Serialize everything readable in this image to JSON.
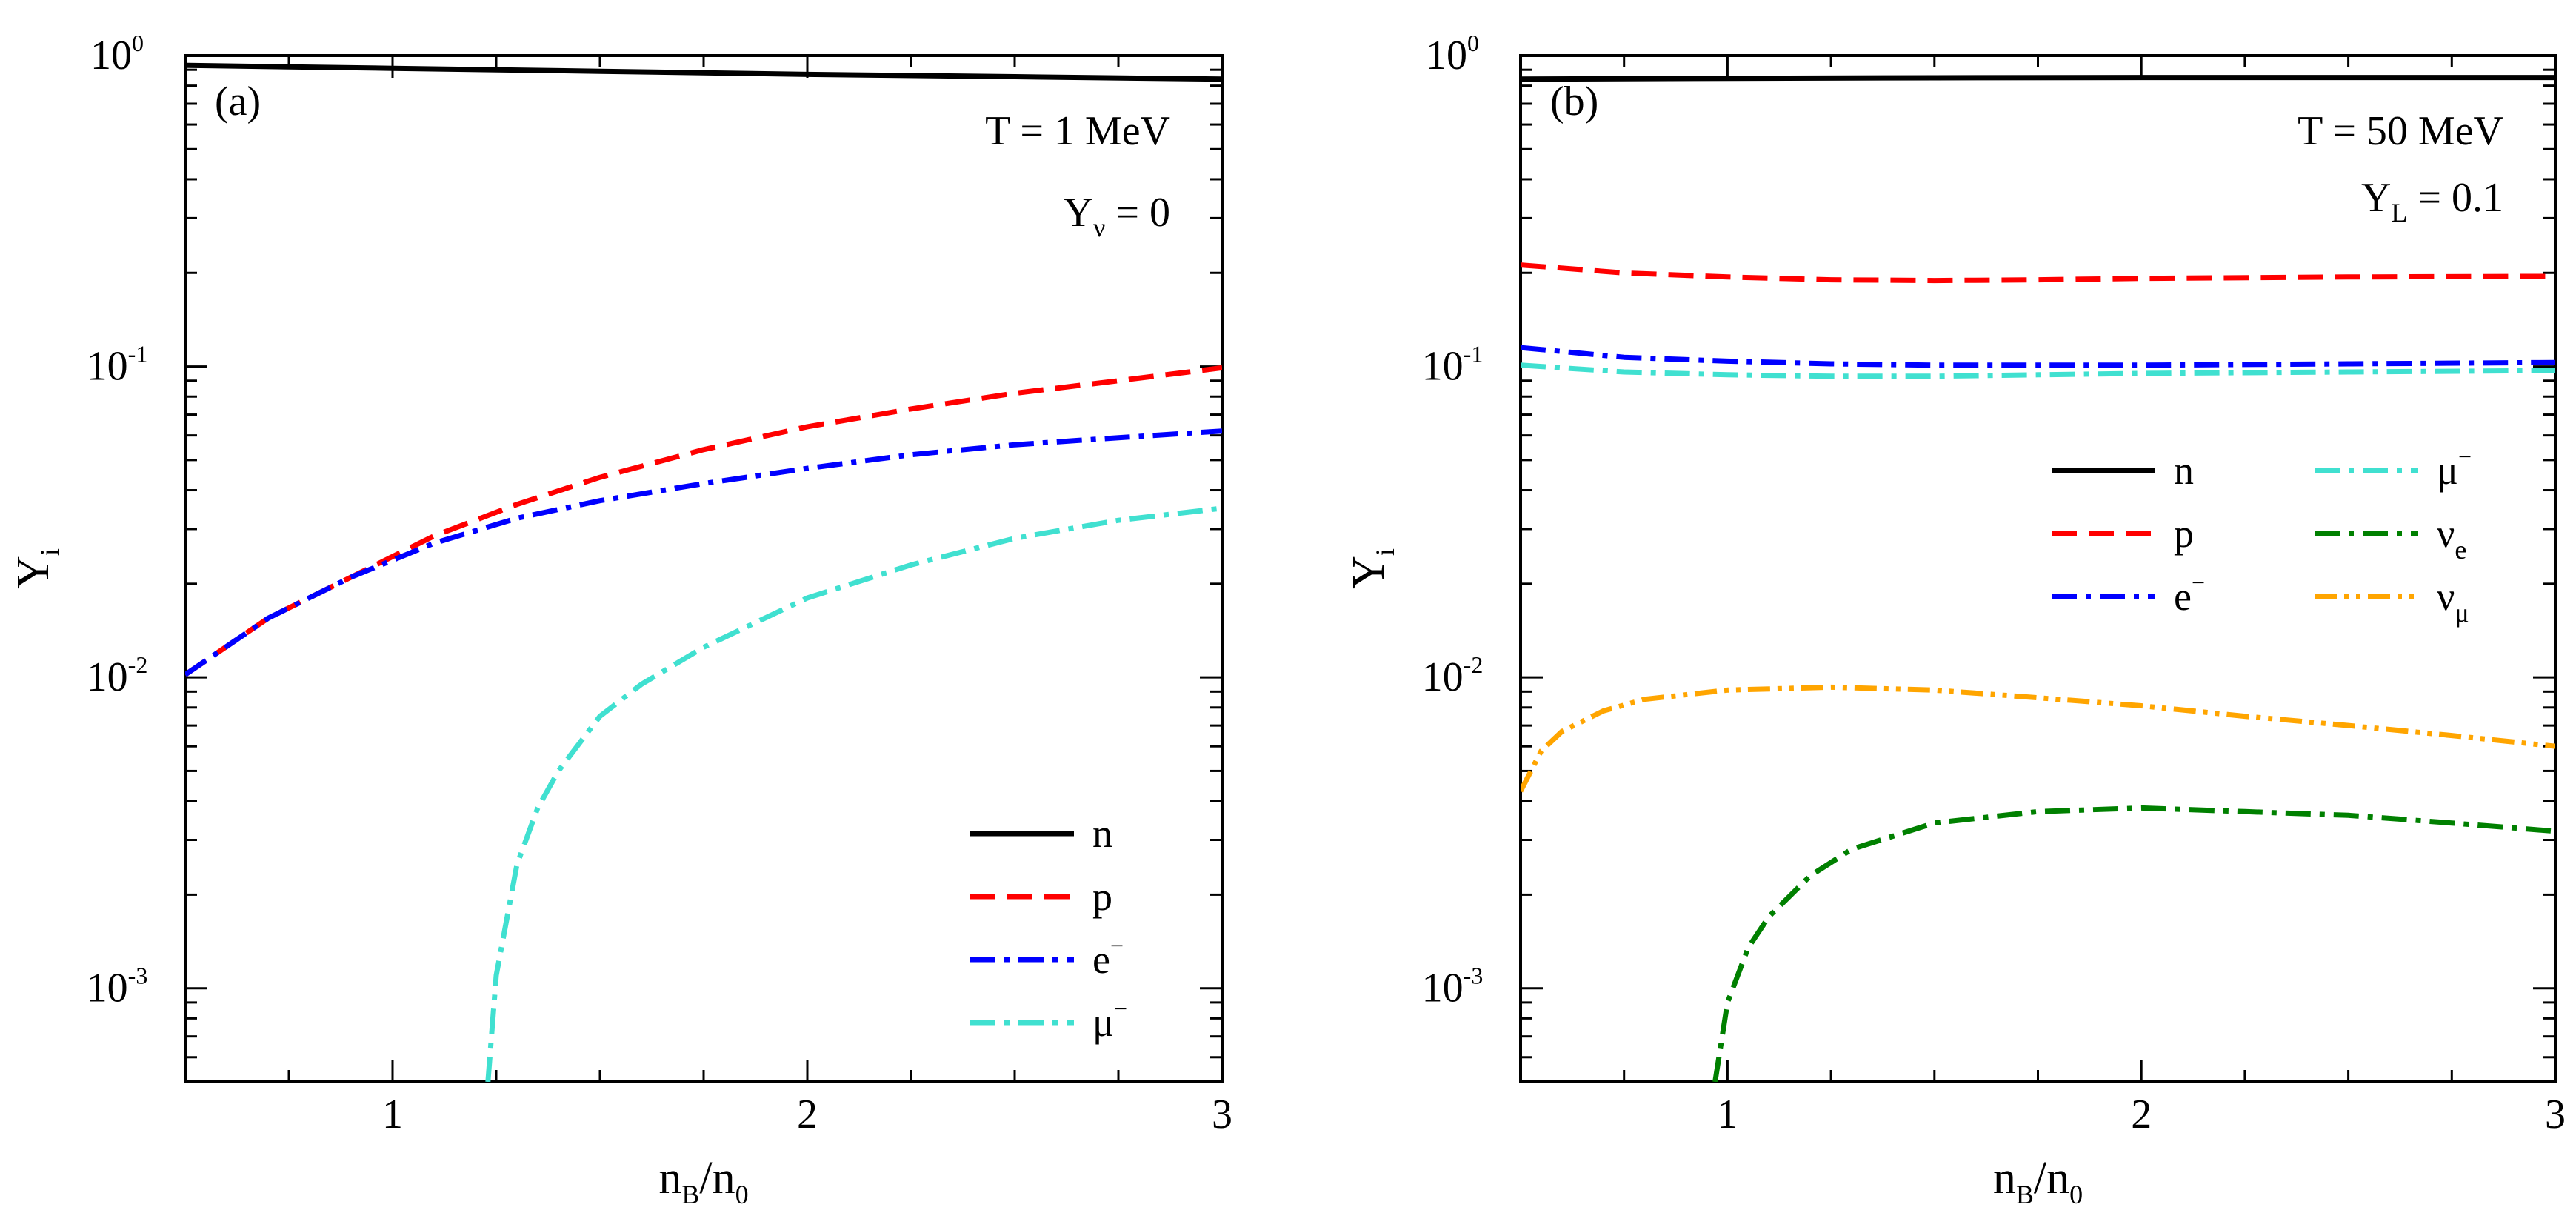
{
  "chart_data": [
    {
      "type": "line",
      "panel_label": "(a)",
      "xlabel": {
        "main": "n",
        "sub1": "B",
        "sep": "/n",
        "sub2": "0"
      },
      "ylabel": {
        "main": "Y",
        "sub": "i"
      },
      "xlim": [
        0.5,
        3
      ],
      "ylim": [
        0.0005,
        1
      ],
      "yscale": "log",
      "x_ticks": [
        {
          "v": 1,
          "label": "1"
        },
        {
          "v": 2,
          "label": "2"
        },
        {
          "v": 3,
          "label": "3"
        }
      ],
      "y_ticks": [
        {
          "v": 1,
          "base": "10",
          "exp": "0"
        },
        {
          "v": 0.1,
          "base": "10",
          "exp": "-1"
        },
        {
          "v": 0.01,
          "base": "10",
          "exp": "-2"
        },
        {
          "v": 0.001,
          "base": "10",
          "exp": "-3"
        }
      ],
      "annotations": [
        {
          "main": "T = 1 MeV",
          "sub": "",
          "tail": ""
        },
        {
          "main": "Y",
          "sub": "ν",
          "tail": " = 0"
        }
      ],
      "legend": {
        "placement": "bottom-right",
        "columns": 1
      },
      "series": [
        {
          "name": "n",
          "sup": "",
          "sub": "",
          "color": "#000000",
          "dash": "solid",
          "x": [
            0.5,
            1.0,
            1.5,
            2.0,
            2.5,
            3.0
          ],
          "y": [
            0.93,
            0.91,
            0.89,
            0.87,
            0.855,
            0.84
          ]
        },
        {
          "name": "p",
          "sup": "",
          "sub": "",
          "color": "#ff0000",
          "dash": "dash",
          "x": [
            0.5,
            0.7,
            0.9,
            1.1,
            1.3,
            1.5,
            1.75,
            2.0,
            2.25,
            2.5,
            2.75,
            3.0
          ],
          "y": [
            0.0102,
            0.0155,
            0.021,
            0.0285,
            0.036,
            0.044,
            0.054,
            0.064,
            0.073,
            0.082,
            0.09,
            0.099
          ]
        },
        {
          "name": "e",
          "sup": "−",
          "sub": "",
          "color": "#0000ff",
          "dash": "dashdot",
          "x": [
            0.5,
            0.7,
            0.9,
            1.1,
            1.3,
            1.5,
            1.75,
            2.0,
            2.25,
            2.5,
            2.75,
            3.0
          ],
          "y": [
            0.0102,
            0.0155,
            0.021,
            0.027,
            0.0325,
            0.037,
            0.042,
            0.047,
            0.052,
            0.056,
            0.059,
            0.062
          ]
        },
        {
          "name": "μ",
          "sup": "−",
          "sub": "",
          "color": "#40e0d0",
          "dash": "dashdot",
          "x": [
            1.23,
            1.25,
            1.3,
            1.35,
            1.4,
            1.5,
            1.6,
            1.75,
            2.0,
            2.25,
            2.5,
            2.75,
            3.0
          ],
          "y": [
            0.0005,
            0.0011,
            0.0025,
            0.0038,
            0.005,
            0.0075,
            0.0095,
            0.0125,
            0.018,
            0.023,
            0.028,
            0.032,
            0.035
          ]
        }
      ]
    },
    {
      "type": "line",
      "panel_label": "(b)",
      "xlabel": {
        "main": "n",
        "sub1": "B",
        "sep": "/n",
        "sub2": "0"
      },
      "ylabel": {
        "main": "Y",
        "sub": "i"
      },
      "xlim": [
        0.5,
        3
      ],
      "ylim": [
        0.0005,
        1
      ],
      "yscale": "log",
      "x_ticks": [
        {
          "v": 1,
          "label": "1"
        },
        {
          "v": 2,
          "label": "2"
        },
        {
          "v": 3,
          "label": "3"
        }
      ],
      "y_ticks": [
        {
          "v": 1,
          "base": "10",
          "exp": "0"
        },
        {
          "v": 0.1,
          "base": "10",
          "exp": "-1"
        },
        {
          "v": 0.01,
          "base": "10",
          "exp": "-2"
        },
        {
          "v": 0.001,
          "base": "10",
          "exp": "-3"
        }
      ],
      "annotations": [
        {
          "main": "T = 50 MeV",
          "sub": "",
          "tail": ""
        },
        {
          "main": "Y",
          "sub": "L",
          "tail": " = 0.1"
        }
      ],
      "legend": {
        "placement": "center-right",
        "columns": 2
      },
      "series": [
        {
          "name": "n",
          "sup": "",
          "sub": "",
          "color": "#000000",
          "dash": "solid",
          "x": [
            0.5,
            1.0,
            1.5,
            2.0,
            2.5,
            3.0
          ],
          "y": [
            0.84,
            0.845,
            0.848,
            0.85,
            0.85,
            0.85
          ]
        },
        {
          "name": "p",
          "sup": "",
          "sub": "",
          "color": "#ff0000",
          "dash": "dash",
          "x": [
            0.5,
            0.75,
            1.0,
            1.25,
            1.5,
            1.75,
            2.0,
            2.5,
            3.0
          ],
          "y": [
            0.212,
            0.2,
            0.194,
            0.19,
            0.189,
            0.19,
            0.192,
            0.194,
            0.195
          ]
        },
        {
          "name": "e",
          "sup": "−",
          "sub": "",
          "color": "#0000ff",
          "dash": "dashdot",
          "x": [
            0.5,
            0.75,
            1.0,
            1.25,
            1.5,
            1.75,
            2.0,
            2.5,
            3.0
          ],
          "y": [
            0.115,
            0.107,
            0.104,
            0.102,
            0.101,
            0.101,
            0.101,
            0.102,
            0.103
          ]
        },
        {
          "name": "μ",
          "sup": "−",
          "sub": "",
          "color": "#40e0d0",
          "dash": "dashdot",
          "x": [
            0.5,
            0.75,
            1.0,
            1.25,
            1.5,
            1.75,
            2.0,
            2.5,
            3.0
          ],
          "y": [
            0.101,
            0.096,
            0.094,
            0.093,
            0.093,
            0.094,
            0.095,
            0.096,
            0.097
          ]
        },
        {
          "name": "ν",
          "sup": "",
          "sub": "e",
          "color": "#008000",
          "dash": "dashdot",
          "x": [
            0.97,
            1.0,
            1.05,
            1.1,
            1.2,
            1.3,
            1.5,
            1.75,
            2.0,
            2.25,
            2.5,
            2.75,
            3.0
          ],
          "y": [
            0.0005,
            0.0009,
            0.00135,
            0.0017,
            0.0023,
            0.0028,
            0.0034,
            0.0037,
            0.0038,
            0.0037,
            0.0036,
            0.0034,
            0.0032
          ]
        },
        {
          "name": "ν",
          "sup": "",
          "sub": "μ",
          "color": "#ffa500",
          "dash": "dashdotdot",
          "x": [
            0.5,
            0.55,
            0.6,
            0.7,
            0.8,
            1.0,
            1.25,
            1.5,
            1.75,
            2.0,
            2.25,
            2.5,
            2.75,
            3.0
          ],
          "y": [
            0.0043,
            0.0058,
            0.0067,
            0.0078,
            0.0085,
            0.0091,
            0.0093,
            0.0091,
            0.0086,
            0.0081,
            0.0075,
            0.007,
            0.0065,
            0.006
          ]
        }
      ]
    }
  ]
}
